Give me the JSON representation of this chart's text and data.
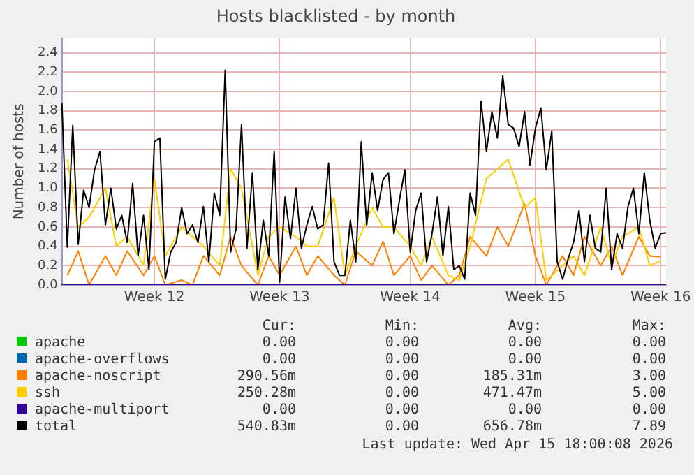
{
  "chart_data": {
    "type": "line",
    "title": "Hosts blacklisted - by month",
    "ylabel": "Number of hosts",
    "categories": [
      null,
      null,
      null,
      null,
      null,
      null,
      null,
      null,
      null,
      null,
      null,
      null,
      null,
      null,
      null,
      null,
      null,
      "Week 12",
      null,
      null,
      null,
      null,
      null,
      null,
      null,
      null,
      null,
      null,
      null,
      null,
      null,
      null,
      null,
      null,
      null,
      null,
      null,
      null,
      null,
      null,
      "Week 13",
      null,
      null,
      null,
      null,
      null,
      null,
      null,
      null,
      null,
      null,
      null,
      null,
      null,
      null,
      null,
      null,
      null,
      null,
      null,
      null,
      null,
      null,
      null,
      "Week 14",
      null,
      null,
      null,
      null,
      null,
      null,
      null,
      null,
      null,
      null,
      null,
      null,
      null,
      null,
      null,
      null,
      null,
      null,
      null,
      null,
      null,
      null,
      "Week 15",
      null,
      null,
      null,
      null,
      null,
      null,
      null,
      null,
      null,
      null,
      null,
      null,
      null,
      null,
      null,
      null,
      null,
      null,
      null,
      null,
      null,
      null,
      "Week 16",
      null
    ],
    "ylim": [
      0,
      2.55
    ],
    "yticks": [
      {
        "value": 0,
        "label": "0.0"
      },
      0.2,
      0.4,
      0.6,
      0.8,
      {
        "value": 1,
        "label": "1.0"
      },
      1.2,
      1.4,
      1.6,
      1.8,
      {
        "value": 2,
        "label": "2.0"
      },
      2.2,
      2.4
    ],
    "grid": true,
    "legend": "bottom",
    "marker": "none",
    "line_style": "solid",
    "series": [
      {
        "name": "apache",
        "color": "#00cc00",
        "values": [
          null,
          null,
          null,
          null,
          null,
          null,
          null,
          null,
          null,
          null,
          null,
          null,
          null,
          null,
          null,
          null,
          null,
          null,
          null,
          null,
          null,
          null,
          null,
          null,
          null,
          null,
          null,
          null,
          null,
          null,
          null,
          null,
          null,
          null,
          null,
          null,
          null,
          null,
          null,
          null,
          null,
          null,
          null,
          null,
          null,
          null,
          null,
          null,
          null,
          null,
          null,
          null,
          null,
          null,
          null,
          null,
          null,
          null,
          null,
          null,
          null,
          null,
          null,
          null,
          null,
          null,
          null,
          null,
          null,
          null,
          null,
          null,
          null,
          null,
          null,
          null,
          null,
          null,
          null,
          null,
          null,
          null,
          null,
          null,
          null,
          null,
          null,
          null,
          null,
          null,
          null,
          null,
          null,
          null,
          null,
          null,
          null,
          null,
          null,
          null,
          null,
          null,
          null,
          null,
          null,
          null,
          null,
          null,
          null,
          null,
          null,
          null
        ]
      },
      {
        "name": "apache-overflows",
        "color": "#0066b3",
        "values": [
          null,
          null,
          null,
          null,
          null,
          null,
          null,
          null,
          null,
          null,
          null,
          null,
          null,
          null,
          null,
          null,
          null,
          null,
          null,
          null,
          null,
          null,
          null,
          null,
          null,
          null,
          null,
          null,
          null,
          null,
          null,
          null,
          null,
          null,
          null,
          null,
          null,
          null,
          null,
          null,
          null,
          null,
          null,
          null,
          null,
          null,
          null,
          null,
          null,
          null,
          null,
          null,
          null,
          null,
          null,
          null,
          null,
          null,
          null,
          null,
          null,
          null,
          null,
          null,
          null,
          null,
          null,
          null,
          null,
          null,
          null,
          null,
          null,
          null,
          null,
          null,
          null,
          null,
          null,
          null,
          null,
          null,
          null,
          null,
          null,
          null,
          null,
          null,
          null,
          null,
          null,
          null,
          null,
          null,
          null,
          null,
          null,
          null,
          null,
          null,
          null,
          null,
          null,
          null,
          null,
          null,
          null,
          null,
          null,
          null,
          null,
          null
        ]
      },
      {
        "name": "apache-noscript",
        "color": "#ff8000",
        "values": [
          null,
          0.1,
          null,
          0.35,
          null,
          0.0,
          null,
          null,
          0.3,
          null,
          0.1,
          null,
          0.35,
          null,
          null,
          0.1,
          null,
          0.3,
          null,
          0.0,
          null,
          null,
          0.05,
          null,
          0.0,
          null,
          0.3,
          null,
          null,
          0.1,
          null,
          0.5,
          null,
          0.2,
          null,
          null,
          0.0,
          null,
          0.3,
          null,
          0.1,
          null,
          null,
          0.4,
          null,
          0.1,
          null,
          0.3,
          null,
          null,
          0.1,
          null,
          0.0,
          null,
          0.35,
          null,
          null,
          0.2,
          null,
          0.45,
          null,
          0.1,
          null,
          null,
          0.3,
          null,
          0.05,
          null,
          0.2,
          null,
          null,
          0.0,
          null,
          0.1,
          null,
          0.5,
          null,
          null,
          0.3,
          null,
          0.6,
          null,
          0.4,
          null,
          null,
          0.84,
          null,
          0.3,
          null,
          0.0,
          null,
          null,
          0.3,
          null,
          0.1,
          null,
          0.5,
          null,
          null,
          0.2,
          null,
          0.4,
          null,
          0.1,
          null,
          null,
          0.5,
          null,
          0.3,
          null,
          0.29,
          null
        ]
      },
      {
        "name": "ssh",
        "color": "#ffcc00",
        "values": [
          null,
          1.3,
          null,
          0.6,
          null,
          0.7,
          null,
          null,
          1.0,
          null,
          0.4,
          null,
          0.5,
          null,
          null,
          0.2,
          null,
          1.1,
          null,
          0.3,
          null,
          null,
          0.6,
          null,
          0.5,
          null,
          0.4,
          null,
          null,
          0.2,
          null,
          1.2,
          null,
          1.0,
          null,
          null,
          0.1,
          null,
          0.5,
          null,
          0.6,
          null,
          null,
          0.5,
          null,
          0.4,
          null,
          0.4,
          null,
          null,
          0.9,
          null,
          0.1,
          null,
          0.4,
          null,
          null,
          0.8,
          null,
          0.6,
          null,
          0.6,
          null,
          null,
          0.4,
          null,
          0.2,
          null,
          0.5,
          null,
          null,
          0.1,
          null,
          0.05,
          null,
          0.4,
          null,
          null,
          1.1,
          null,
          1.2,
          null,
          1.3,
          null,
          null,
          0.8,
          null,
          0.9,
          null,
          0.05,
          null,
          null,
          0.2,
          null,
          0.3,
          null,
          0.1,
          null,
          null,
          0.6,
          null,
          0.2,
          null,
          0.5,
          null,
          null,
          0.6,
          null,
          0.2,
          null,
          0.25,
          null
        ]
      },
      {
        "name": "apache-multiport",
        "color": "#330099",
        "values": [
          0,
          0,
          0,
          0,
          0,
          0,
          0,
          0,
          0,
          0,
          0,
          0,
          0,
          0,
          0,
          0,
          0,
          0,
          0,
          0,
          0,
          0,
          0,
          0,
          0,
          0,
          0,
          0,
          0,
          0,
          0,
          0,
          0,
          0,
          0,
          0,
          0,
          0,
          0,
          0,
          0,
          0,
          0,
          0,
          0,
          0,
          0,
          0,
          0,
          0,
          0,
          0,
          0,
          0,
          0,
          0,
          0,
          0,
          0,
          0,
          0,
          0,
          0,
          0,
          0,
          0,
          0,
          0,
          0,
          0,
          0,
          0,
          0,
          0,
          0,
          0,
          0,
          0,
          0,
          0,
          0,
          0,
          0,
          0,
          0,
          0,
          0,
          0,
          0,
          0,
          0,
          0,
          0,
          0,
          0,
          0,
          0,
          0,
          0,
          0,
          0,
          0,
          0,
          0,
          0,
          0,
          0,
          0,
          0,
          0,
          0,
          0
        ]
      },
      {
        "name": "total",
        "color": "#000000",
        "values": [
          1.88,
          0.39,
          1.65,
          0.42,
          0.98,
          0.8,
          1.19,
          1.38,
          0.62,
          1.0,
          0.58,
          0.72,
          0.44,
          1.05,
          0.3,
          0.72,
          0.16,
          1.48,
          1.52,
          0.06,
          0.34,
          0.44,
          0.8,
          0.53,
          0.62,
          0.44,
          0.81,
          0.24,
          0.95,
          0.72,
          2.22,
          0.34,
          0.58,
          1.66,
          0.38,
          1.16,
          0.16,
          0.67,
          0.3,
          1.38,
          0.03,
          0.91,
          0.48,
          1.0,
          0.38,
          0.62,
          0.81,
          0.58,
          0.62,
          1.26,
          0.24,
          0.1,
          0.1,
          0.67,
          0.24,
          1.48,
          0.62,
          1.16,
          0.77,
          1.09,
          1.16,
          0.53,
          0.87,
          1.19,
          0.34,
          0.77,
          0.95,
          0.24,
          0.53,
          0.91,
          0.3,
          0.81,
          0.16,
          0.2,
          0.06,
          0.95,
          0.72,
          1.9,
          1.38,
          1.79,
          1.52,
          2.16,
          1.66,
          1.62,
          1.43,
          1.79,
          1.24,
          1.62,
          1.83,
          1.19,
          1.59,
          0.24,
          0.06,
          0.27,
          0.44,
          0.77,
          0.24,
          0.72,
          0.38,
          0.34,
          1.0,
          0.16,
          0.53,
          0.38,
          0.81,
          1.0,
          0.53,
          1.16,
          0.67,
          0.38,
          0.53,
          0.54
        ]
      }
    ],
    "annotations": [
      "Cur:",
      "Min:",
      "Avg:",
      "Max:",
      "0.00",
      "0.00",
      "0.00",
      "0.00",
      "0.00",
      "0.00",
      "0.00",
      "0.00",
      "290.56m",
      "0.00",
      "185.31m",
      "3.00",
      "250.28m",
      "0.00",
      "471.47m",
      "5.00",
      "0.00",
      "0.00",
      "0.00",
      "0.00",
      "540.83m",
      "0.00",
      "656.78m",
      "7.89",
      "Last update: Wed Apr 15 18:00:08 2026"
    ]
  }
}
